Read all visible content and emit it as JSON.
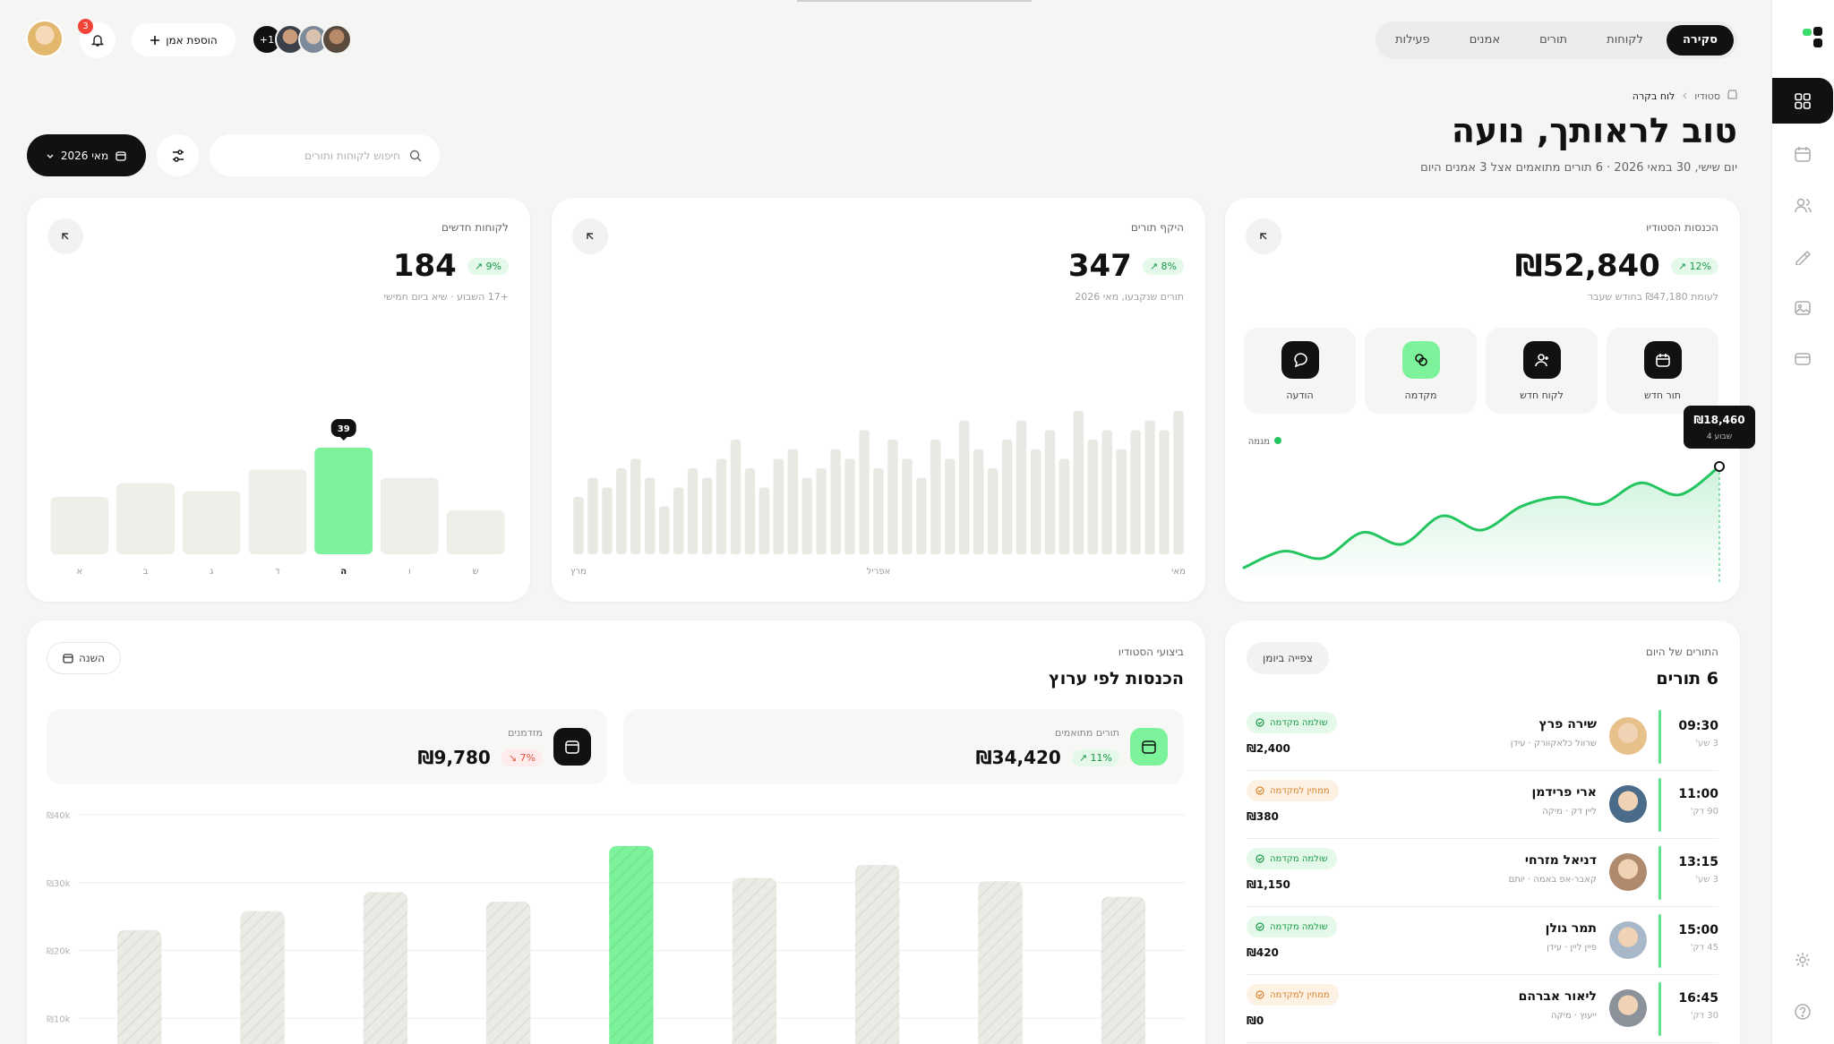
{
  "nav": {
    "tabs": [
      {
        "label": "סקירה",
        "active": true
      },
      {
        "label": "לקוחות",
        "active": false
      },
      {
        "label": "תורים",
        "active": false
      },
      {
        "label": "אמנים",
        "active": false
      },
      {
        "label": "פעילות",
        "active": false
      }
    ]
  },
  "toolbar": {
    "notifications": 3,
    "add_artist": "הוספת אמן",
    "team_extra": "+1",
    "search_placeholder": "חיפוש לקוחות ותורים",
    "date_filter": "מאי 2026"
  },
  "header": {
    "breadcrumb": [
      "סטודיו",
      "לוח בקרה"
    ],
    "title": "טוב לראותך, נועה",
    "subtitle": "יום שישי, 30 במאי 2026 · 6 תורים מתואמים אצל 3 אמנים היום"
  },
  "revenue_card": {
    "label": "הכנסות הסטודיו",
    "value": "₪52,840",
    "change": "↗ 12%",
    "note": "לעומת ₪47,180 בחודש שעבר",
    "actions": [
      "תור חדש",
      "לקוח חדש",
      "מקדמה",
      "הודעה"
    ]
  },
  "volume_card": {
    "label": "היקף תורים",
    "value": 347,
    "change": "↗ 8%",
    "note": "תורים שנקבעו, מאי 2026"
  },
  "clients_card": {
    "label": "לקוחות חדשים",
    "value": 184,
    "change": "↗ 9%",
    "note": "+17 השבוע · שיא ביום חמישי"
  },
  "performance_card": {
    "eyebrow": "ביצועי הסטודיו",
    "title": "הכנסות לפי ערוץ",
    "period": "השנה",
    "stats": [
      {
        "label": "תורים מתואמים",
        "value": "₪34,420",
        "change": "↗ 11%",
        "trend_color": "#159a45",
        "trend_bg": "#e5f9ea",
        "icon_color": "#7cf29a"
      },
      {
        "label": "מזדמנים",
        "value": "₪9,780",
        "change": "↘ 7%",
        "trend_color": "#e0523a",
        "trend_bg": "#fdeceb",
        "icon_color": "#111111"
      }
    ]
  },
  "schedule_card": {
    "eyebrow": "התורים של היום",
    "title": "6 תורים",
    "action": "צפייה ביומן",
    "appointments": [
      {
        "time": "09:30",
        "duration": "3 שע'",
        "name": "שירה פרץ",
        "service": "שרוול כלאקוורק · עידן",
        "status": "שולמה מקדמה",
        "status_color": "#159a45",
        "status_bg": "#e5f9ea",
        "amount": "₪2,400",
        "avatar_color": "#e8c08a"
      },
      {
        "time": "11:00",
        "duration": "90 דק'",
        "name": "ארי פרידמן",
        "service": "ליין דק · מיקה",
        "status": "ממתין למקדמה",
        "status_color": "#d9822b",
        "status_bg": "#fdf1e4",
        "amount": "₪380",
        "avatar_color": "#4a6b8a"
      },
      {
        "time": "13:15",
        "duration": "3 שע'",
        "name": "דניאל מזרחי",
        "service": "קאבר-אפ באמה · יותם",
        "status": "שולמה מקדמה",
        "status_color": "#159a45",
        "status_bg": "#e5f9ea",
        "amount": "₪1,150",
        "avatar_color": "#b08a6c"
      },
      {
        "time": "15:00",
        "duration": "45 דק'",
        "name": "תמר גולן",
        "service": "פיין ליין · עידן",
        "status": "שולמה מקדמה",
        "status_color": "#159a45",
        "status_bg": "#e5f9ea",
        "amount": "₪420",
        "avatar_color": "#a9b8c8"
      },
      {
        "time": "16:45",
        "duration": "30 דק'",
        "name": "ליאור אברהם",
        "service": "ייעוץ · מיקה",
        "status": "ממתין למקדמה",
        "status_color": "#d9822b",
        "status_bg": "#fdf1e4",
        "amount": "₪0",
        "avatar_color": "#8c9299"
      }
    ]
  },
  "chart_data": [
    {
      "type": "bar",
      "categories": [
        "א",
        "ב",
        "ג",
        "ד",
        "ה",
        "ו",
        "ש"
      ],
      "values": [
        21,
        26,
        23,
        31,
        39,
        28,
        16
      ],
      "color": "#efefea",
      "highlight": 4,
      "highlight_color": "#7cf29a"
    },
    {
      "type": "bar",
      "categories": [
        "מרץ",
        null,
        null,
        null,
        null,
        null,
        null,
        null,
        null,
        null,
        null,
        null,
        null,
        null,
        null,
        null,
        null,
        null,
        null,
        null,
        null,
        "אפריל",
        null,
        null,
        null,
        null,
        null,
        null,
        null,
        null,
        null,
        null,
        null,
        null,
        null,
        null,
        null,
        null,
        null,
        null,
        null,
        null,
        "מאי"
      ],
      "values": [
        6,
        8,
        7,
        9,
        10,
        8,
        5,
        7,
        9,
        8,
        10,
        12,
        9,
        7,
        10,
        11,
        8,
        9,
        11,
        10,
        13,
        9,
        12,
        10,
        8,
        12,
        10,
        14,
        11,
        9,
        12,
        14,
        11,
        13,
        10,
        15,
        12,
        13,
        11,
        13,
        14,
        13,
        15
      ],
      "color": "#e9e9e4"
    },
    {
      "type": "line",
      "series": [
        {
          "name": "מגמה",
          "color": "#22c55e",
          "values": [
            8000,
            9700,
            8980,
            11650,
            10430,
            13350,
            11890,
            14330,
            15300,
            14570,
            16760,
            15540,
            18460
          ],
          "value_labels": [
            null,
            null,
            null,
            null,
            null,
            null,
            null,
            null,
            null,
            null,
            null,
            null,
            "₪18,460"
          ]
        }
      ],
      "tooltip_caption": "שבוע 4"
    },
    {
      "type": "bar",
      "categories": [
        null,
        null,
        null,
        null,
        null,
        null,
        null,
        null,
        null
      ],
      "values": [
        23000,
        25800,
        28600,
        27200,
        35400,
        30700,
        32600,
        30200,
        27900
      ],
      "ylim": [
        0,
        40000
      ],
      "yticks": [
        {
          "value": 10000,
          "label": "₪10k"
        },
        {
          "value": 20000,
          "label": "₪20k"
        },
        {
          "value": 30000,
          "label": "₪30k"
        },
        {
          "value": 40000,
          "label": "₪40k"
        }
      ],
      "grid": true,
      "color": "#ebebe6",
      "highlight": 4,
      "highlight_color": "#7cf29a"
    }
  ]
}
